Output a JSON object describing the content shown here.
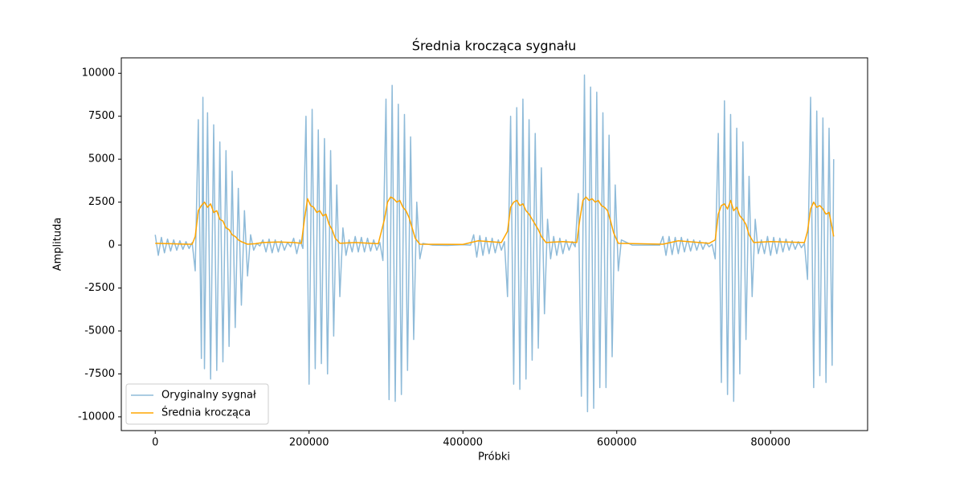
{
  "chart_data": {
    "type": "line",
    "title": "Średnia krocząca sygnału",
    "x_label": "Próbki",
    "y_label": "Amplituda",
    "xlim": [
      -44100,
      926100
    ],
    "ylim": [
      -10800,
      10900
    ],
    "xticks": [
      0,
      200000,
      400000,
      600000,
      800000
    ],
    "yticks": [
      -10000,
      -7500,
      -5000,
      -2500,
      0,
      2500,
      5000,
      7500,
      10000
    ],
    "grid": false,
    "legend": "lower left",
    "series": [
      {
        "name": "Oryginalny sygnał",
        "color": "#1f77b4",
        "alpha": 0.5,
        "x": [
          0,
          4000,
          8000,
          12000,
          16000,
          20000,
          24000,
          28000,
          32000,
          36000,
          40000,
          44000,
          48000,
          52000,
          56000,
          60000,
          62000,
          64000,
          68000,
          72000,
          76000,
          80000,
          84000,
          88000,
          92000,
          96000,
          100000,
          104000,
          108000,
          112000,
          116000,
          120000,
          124000,
          128000,
          132000,
          136000,
          140000,
          144000,
          148000,
          152000,
          156000,
          160000,
          164000,
          168000,
          172000,
          176000,
          180000,
          184000,
          188000,
          192000,
          196000,
          200000,
          204000,
          208000,
          212000,
          216000,
          220000,
          224000,
          228000,
          232000,
          236000,
          240000,
          244000,
          248000,
          252000,
          256000,
          260000,
          264000,
          268000,
          272000,
          276000,
          280000,
          284000,
          288000,
          292000,
          296000,
          300000,
          304000,
          308000,
          312000,
          316000,
          320000,
          324000,
          328000,
          332000,
          336000,
          340000,
          344000,
          348000,
          360000,
          380000,
          400000,
          410000,
          414000,
          418000,
          422000,
          426000,
          430000,
          434000,
          438000,
          442000,
          446000,
          450000,
          454000,
          458000,
          462000,
          466000,
          470000,
          474000,
          478000,
          482000,
          486000,
          490000,
          494000,
          498000,
          502000,
          506000,
          510000,
          514000,
          518000,
          522000,
          526000,
          530000,
          534000,
          538000,
          542000,
          546000,
          550000,
          554000,
          558000,
          562000,
          566000,
          570000,
          574000,
          578000,
          582000,
          586000,
          590000,
          594000,
          598000,
          602000,
          606000,
          620000,
          640000,
          656000,
          660000,
          664000,
          668000,
          672000,
          676000,
          680000,
          684000,
          688000,
          692000,
          696000,
          700000,
          704000,
          708000,
          712000,
          716000,
          720000,
          724000,
          728000,
          732000,
          736000,
          740000,
          744000,
          748000,
          752000,
          756000,
          760000,
          764000,
          768000,
          772000,
          776000,
          780000,
          784000,
          788000,
          792000,
          796000,
          800000,
          804000,
          808000,
          812000,
          816000,
          820000,
          824000,
          828000,
          832000,
          836000,
          840000,
          844000,
          848000,
          852000,
          856000,
          860000,
          864000,
          868000,
          872000,
          876000,
          880000,
          882000
        ],
        "values": [
          600,
          -600,
          450,
          -450,
          350,
          -350,
          300,
          -300,
          250,
          -250,
          200,
          -200,
          150,
          -1500,
          7300,
          -6600,
          8600,
          -7200,
          7700,
          -7800,
          7000,
          -7300,
          6000,
          -6800,
          5500,
          -5900,
          4300,
          -4800,
          3300,
          -3500,
          2000,
          -1800,
          600,
          -300,
          100,
          -50,
          300,
          -400,
          350,
          -450,
          300,
          -400,
          250,
          -300,
          150,
          -100,
          400,
          -500,
          300,
          -200,
          7500,
          -8100,
          7900,
          -7200,
          6700,
          -6900,
          6200,
          -7500,
          5500,
          -5300,
          3500,
          -3000,
          1000,
          -600,
          300,
          -400,
          500,
          -400,
          450,
          -400,
          400,
          -350,
          300,
          -300,
          150,
          -900,
          8500,
          -9000,
          9300,
          -9100,
          8200,
          -8700,
          7600,
          -7300,
          6300,
          -5500,
          2500,
          -800,
          100,
          0,
          -20,
          20,
          0,
          600,
          -700,
          550,
          -600,
          450,
          -500,
          400,
          -450,
          300,
          -300,
          200,
          -3000,
          7500,
          -8100,
          8000,
          -8400,
          8500,
          -7800,
          7300,
          -6700,
          6500,
          -6000,
          4500,
          -4000,
          1500,
          -800,
          500,
          -600,
          400,
          -500,
          300,
          -300,
          200,
          -100,
          3000,
          -8800,
          9900,
          -9700,
          9200,
          -9500,
          8900,
          -8300,
          7700,
          -8300,
          6400,
          -6500,
          3500,
          -1500,
          300,
          0,
          0,
          0,
          500,
          -600,
          500,
          -550,
          450,
          -500,
          450,
          -400,
          350,
          -350,
          300,
          -300,
          250,
          -250,
          150,
          -100,
          50,
          -800,
          6500,
          -8000,
          8400,
          -8700,
          7600,
          -9100,
          6800,
          -7500,
          6000,
          -5500,
          4000,
          -3000,
          1500,
          -500,
          300,
          -500,
          500,
          -600,
          450,
          -500,
          400,
          -400,
          350,
          -300,
          250,
          -250,
          200,
          -150,
          100,
          -2000,
          8600,
          -8300,
          7800,
          -7600,
          7400,
          -8000,
          6800,
          -7000,
          5000
        ]
      },
      {
        "name": "Średnia krocząca",
        "color": "#ffa500",
        "alpha": 1,
        "x": [
          0,
          20000,
          40000,
          48000,
          52000,
          56000,
          60000,
          64000,
          68000,
          72000,
          76000,
          80000,
          84000,
          88000,
          92000,
          96000,
          100000,
          104000,
          108000,
          112000,
          120000,
          130000,
          140000,
          160000,
          180000,
          190000,
          194000,
          198000,
          202000,
          206000,
          210000,
          214000,
          218000,
          222000,
          226000,
          230000,
          234000,
          240000,
          260000,
          290000,
          298000,
          302000,
          306000,
          310000,
          314000,
          318000,
          322000,
          326000,
          330000,
          334000,
          338000,
          344000,
          400000,
          420000,
          450000,
          458000,
          462000,
          466000,
          470000,
          474000,
          478000,
          482000,
          486000,
          490000,
          494000,
          498000,
          502000,
          508000,
          530000,
          548000,
          552000,
          556000,
          560000,
          564000,
          568000,
          572000,
          576000,
          580000,
          584000,
          588000,
          592000,
          596000,
          602000,
          660000,
          680000,
          720000,
          728000,
          732000,
          736000,
          740000,
          744000,
          748000,
          752000,
          756000,
          760000,
          764000,
          768000,
          772000,
          778000,
          800000,
          844000,
          848000,
          852000,
          856000,
          860000,
          864000,
          868000,
          872000,
          876000,
          880000,
          882000
        ],
        "values": [
          100,
          80,
          50,
          50,
          500,
          2000,
          2300,
          2500,
          2200,
          2400,
          1900,
          2000,
          1500,
          1400,
          1000,
          900,
          600,
          500,
          300,
          200,
          50,
          80,
          150,
          180,
          150,
          100,
          1500,
          2700,
          2300,
          2200,
          1900,
          2000,
          1700,
          1800,
          1200,
          900,
          400,
          100,
          150,
          80,
          1500,
          2500,
          2800,
          2700,
          2500,
          2600,
          2200,
          2000,
          1600,
          1000,
          400,
          50,
          40,
          250,
          150,
          800,
          2200,
          2500,
          2600,
          2300,
          2400,
          2000,
          1800,
          1500,
          1200,
          900,
          500,
          150,
          200,
          150,
          1500,
          2600,
          2800,
          2600,
          2700,
          2500,
          2600,
          2300,
          2200,
          2000,
          1400,
          700,
          100,
          50,
          250,
          100,
          300,
          1800,
          2300,
          2400,
          2100,
          2600,
          2000,
          2200,
          1700,
          1500,
          1200,
          600,
          150,
          200,
          150,
          800,
          2100,
          2500,
          2200,
          2300,
          2100,
          1800,
          1900,
          1000,
          500
        ]
      }
    ]
  }
}
